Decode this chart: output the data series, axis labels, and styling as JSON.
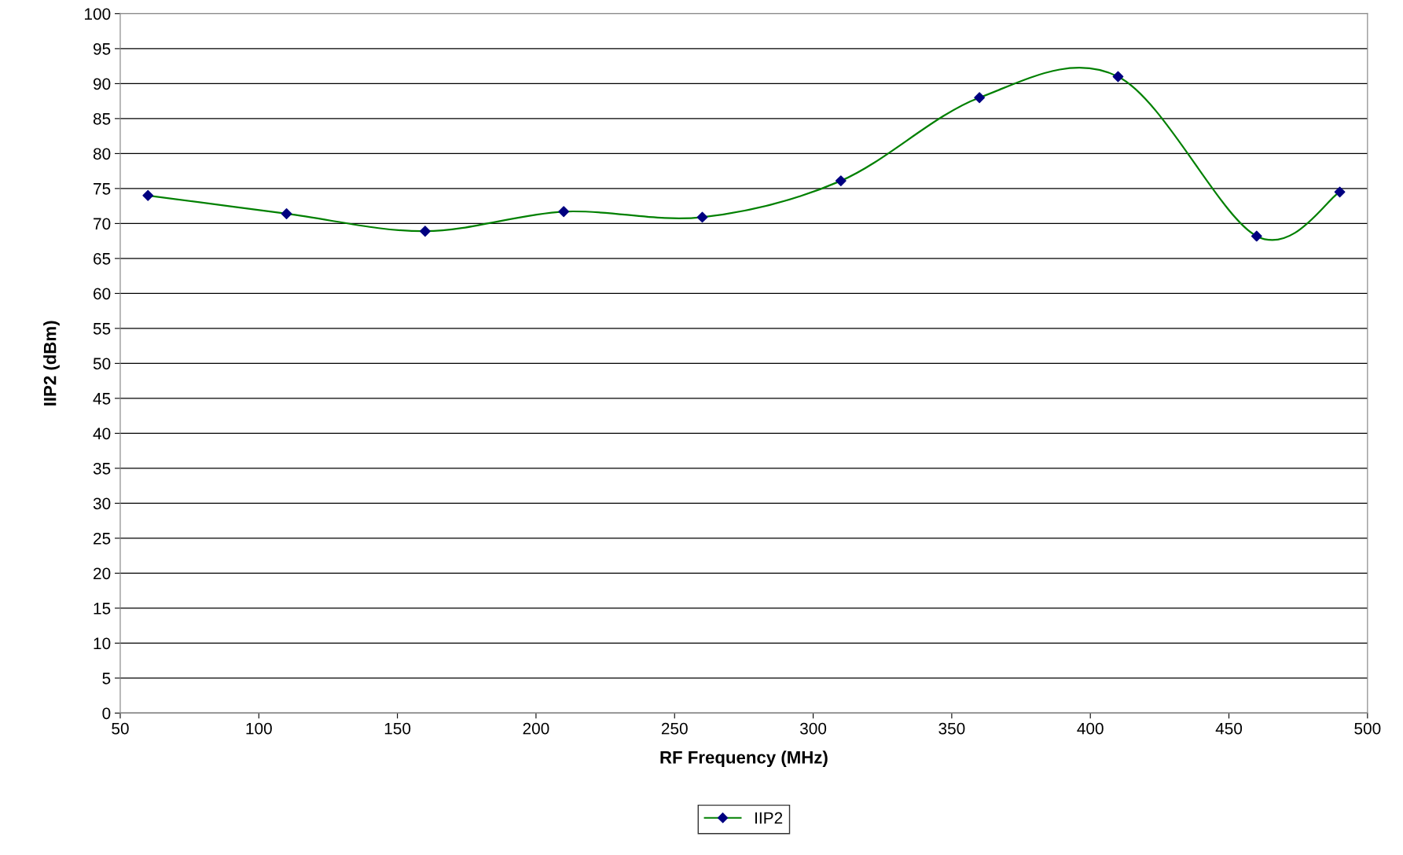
{
  "chart_data": {
    "type": "line",
    "xlabel": "RF Frequency (MHz)",
    "ylabel": "IIP2 (dBm)",
    "x": [
      60,
      110,
      160,
      210,
      260,
      310,
      360,
      410,
      460,
      490
    ],
    "series": [
      {
        "name": "IIP2",
        "color": "#008000",
        "colors": [
          "#000080",
          "#000080",
          "#000080",
          "#000080",
          "#000080",
          "#000080",
          "#000080",
          "#000080",
          "#000080",
          "#000080"
        ],
        "values": [
          74,
          71.4,
          68.9,
          71.7,
          70.9,
          76.1,
          88,
          91,
          68.2,
          74.5
        ]
      }
    ],
    "xlim": [
      50,
      500
    ],
    "xticks": [
      50,
      100,
      150,
      200,
      250,
      300,
      350,
      400,
      450,
      500
    ],
    "ylim": [
      0,
      100
    ],
    "yticks": [
      0,
      5,
      10,
      15,
      20,
      25,
      30,
      35,
      40,
      45,
      50,
      55,
      60,
      65,
      70,
      75,
      80,
      85,
      90,
      95,
      100
    ],
    "grid": "y",
    "legend": "bottom",
    "marker": "diamond",
    "line_style": "solid"
  }
}
